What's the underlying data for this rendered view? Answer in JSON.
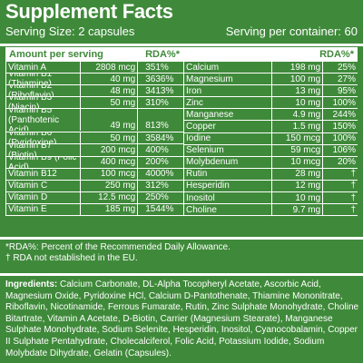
{
  "title": "Supplement Facts",
  "serving_size": "Serving Size: 2 capsules",
  "servings_per_container": "Serving per container: 60",
  "left_header": {
    "amount": "Amount per serving",
    "rda": "RDA%*"
  },
  "right_header": {
    "rda": "RDA%*"
  },
  "left_rows": [
    {
      "name": "Vitamin A",
      "amount": "2808 mcg",
      "rda": "351%"
    },
    {
      "name": "Vitamin B1 (Thiamine)",
      "amount": "40 mg",
      "rda": "3636%"
    },
    {
      "name": "Vitamin B2 (Riboflavin)",
      "amount": "48 mg",
      "rda": "3413%"
    },
    {
      "name": "Vitamin B3 (Niacin)",
      "amount": "50 mg",
      "rda": "310%"
    },
    {
      "name": "Vitamin B5\n(Panthotenic Acid)",
      "amount": "49 mg",
      "rda": "813%",
      "tall": true
    },
    {
      "name": "Vitamin B6 (Pyridoxine)",
      "amount": "50 mg",
      "rda": "3584%"
    },
    {
      "name": "Vitamin B7 (Biotin)",
      "amount": "200 mcg",
      "rda": "400%"
    },
    {
      "name": "Vitamin B9 (Folic Acid)",
      "amount": "400 mcg",
      "rda": "200%"
    },
    {
      "name": "Vitamin B12",
      "amount": "100 mcg",
      "rda": "4000%"
    },
    {
      "name": "Vitamin C",
      "amount": "250 mg",
      "rda": "312%"
    },
    {
      "name": "Vitamin D",
      "amount": "12.5 mcg",
      "rda": "250%"
    },
    {
      "name": "Vitamin E",
      "amount": "185 mg",
      "rda": "1544%"
    }
  ],
  "right_rows": [
    {
      "name": "Calcium",
      "amount": "198 mg",
      "rda": "25%"
    },
    {
      "name": "Magnesium",
      "amount": "100 mg",
      "rda": "27%"
    },
    {
      "name": "Iron",
      "amount": "13 mg",
      "rda": "95%"
    },
    {
      "name": "Zinc",
      "amount": "10 mg",
      "rda": "100%"
    },
    {
      "name": "Manganese",
      "amount": "4.9 mg",
      "rda": "244%"
    },
    {
      "name": "Copper",
      "amount": "1.5 mg",
      "rda": "150%"
    },
    {
      "name": "Iodine",
      "amount": "150 mcg",
      "rda": "100%"
    },
    {
      "name": "Selenium",
      "amount": "59 mcg",
      "rda": "106%"
    },
    {
      "name": "Molybdenum",
      "amount": "10 mcg",
      "rda": "20%"
    },
    {
      "name": "Rutin",
      "amount": "28 mg",
      "rda": "†"
    },
    {
      "name": "Hesperidin",
      "amount": "12 mg",
      "rda": "†"
    },
    {
      "name": "Inositol",
      "amount": "10 mg",
      "rda": "†"
    },
    {
      "name": "Choline",
      "amount": "9.7 mg",
      "rda": "†"
    }
  ],
  "footnote_rda": "*RDA%: Percent of the Recommended Daily Allowance.",
  "footnote_dagger": "† RDA not established in the EU.",
  "ingredients_label": "Ingredients:",
  "ingredients_text": " Calcium Carbonate, DL-Alpha Tocopheryl Acetate, Ascorbic Acid, Magnesium Oxide, Pyridoxine HCl, Calcium D-Pantothenate, Thiamine Mononitrate, Riboflavin, Nicotinamide, Ferrous Fumarate, Rutin, Zinc Sulphate Monohydrate, Choline Bitartrate, Vitamin A Acetate, D-Biotin, Carrier (Magnesium Stearate), Manganese Sulphate Monohydrate, Sodium Selenite, Hesperidin, Inositol, Cyanocobalamin, Copper II Sulphate Pentahydrate, Cholecalciferol, Folic Acid, Potassium Iodide, Sodium Molybdate Dihydrate, Gelatin (Capsules)."
}
